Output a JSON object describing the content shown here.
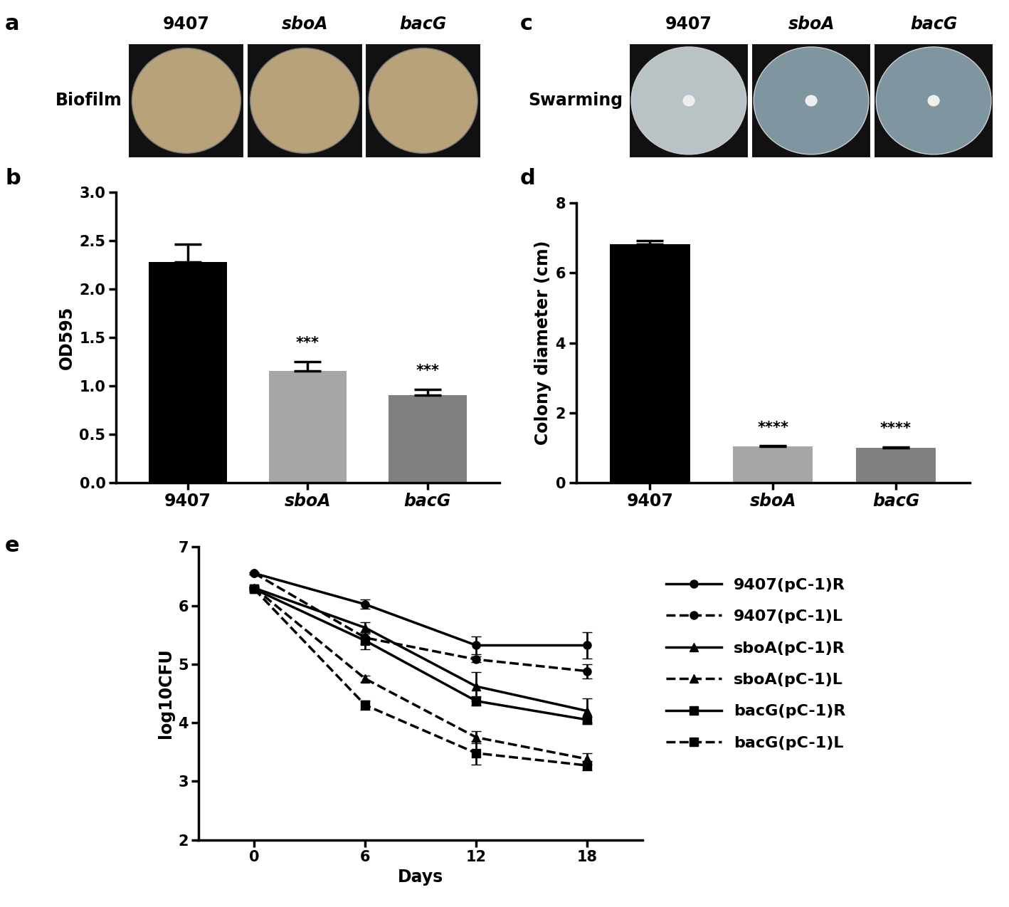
{
  "images": [
    {
      "panel": "a",
      "label": "Biofilm",
      "columns": [
        "9407",
        "sboA",
        "bacG"
      ]
    },
    {
      "panel": "c",
      "label": "Swarming",
      "columns": [
        "9407",
        "sboA",
        "bacG"
      ]
    }
  ],
  "chart_data": [
    {
      "type": "bar",
      "panel": "b",
      "categories": [
        "9407",
        "sboA",
        "bacG"
      ],
      "values": [
        2.28,
        1.15,
        0.9
      ],
      "errors": [
        0.18,
        0.1,
        0.06
      ],
      "colors": [
        "#000000",
        "#a6a6a8",
        "#808080"
      ],
      "annotations": [
        {
          "category": "sboA",
          "text": "***"
        },
        {
          "category": "bacG",
          "text": "***"
        }
      ],
      "y_label": "OD595",
      "ylim": [
        0.0,
        3.0
      ],
      "yticks": [
        0.0,
        0.5,
        1.0,
        1.5,
        2.0,
        2.5,
        3.0
      ]
    },
    {
      "type": "bar",
      "panel": "d",
      "categories": [
        "9407",
        "sboA",
        "bacG"
      ],
      "values": [
        6.82,
        1.03,
        1.0
      ],
      "errors": [
        0.1,
        0.02,
        0.02
      ],
      "colors": [
        "#000000",
        "#a6a6a8",
        "#808080"
      ],
      "annotations": [
        {
          "category": "sboA",
          "text": "****"
        },
        {
          "category": "bacG",
          "text": "****"
        }
      ],
      "y_label": "Colony diameter (cm)",
      "ylim": [
        0,
        8
      ],
      "yticks": [
        0,
        2,
        4,
        6,
        8
      ]
    },
    {
      "type": "line",
      "panel": "e",
      "x": [
        0,
        6,
        12,
        18
      ],
      "x_label": "Days",
      "y_label": "log10CFU",
      "xlim": [
        -3,
        21
      ],
      "xticks": [
        0,
        6,
        12,
        18
      ],
      "ylim": [
        2,
        7
      ],
      "yticks": [
        2,
        3,
        4,
        5,
        6,
        7
      ],
      "legend": "center left",
      "series": [
        {
          "name": "9407(pC-1)R",
          "color": "#000000",
          "marker": "circle",
          "line_style": "solid",
          "values": [
            6.55,
            6.02,
            5.32,
            5.32
          ],
          "errors": [
            0.02,
            0.08,
            0.15,
            0.22
          ]
        },
        {
          "name": "9407(pC-1)L",
          "color": "#000000",
          "marker": "circle",
          "line_style": "dashed",
          "values": [
            6.55,
            5.45,
            5.08,
            4.88
          ],
          "errors": [
            0.02,
            0.1,
            0.05,
            0.12
          ]
        },
        {
          "name": "sboA(pC-1)R",
          "color": "#000000",
          "marker": "triangle",
          "line_style": "solid",
          "values": [
            6.3,
            5.62,
            4.62,
            4.2
          ],
          "errors": [
            0.02,
            0.1,
            0.25,
            0.22
          ]
        },
        {
          "name": "sboA(pC-1)L",
          "color": "#000000",
          "marker": "triangle",
          "line_style": "dashed",
          "values": [
            6.3,
            4.75,
            3.75,
            3.38
          ],
          "errors": [
            0.02,
            0.05,
            0.1,
            0.1
          ]
        },
        {
          "name": "bacG(pC-1)R",
          "color": "#000000",
          "marker": "square",
          "line_style": "solid",
          "values": [
            6.28,
            5.4,
            4.37,
            4.05
          ],
          "errors": [
            0.02,
            0.15,
            0.08,
            0.05
          ]
        },
        {
          "name": "bacG(pC-1)L",
          "color": "#000000",
          "marker": "square",
          "line_style": "dashed",
          "values": [
            6.28,
            4.3,
            3.48,
            3.27
          ],
          "errors": [
            0.02,
            0.08,
            0.2,
            0.08
          ]
        }
      ]
    }
  ]
}
